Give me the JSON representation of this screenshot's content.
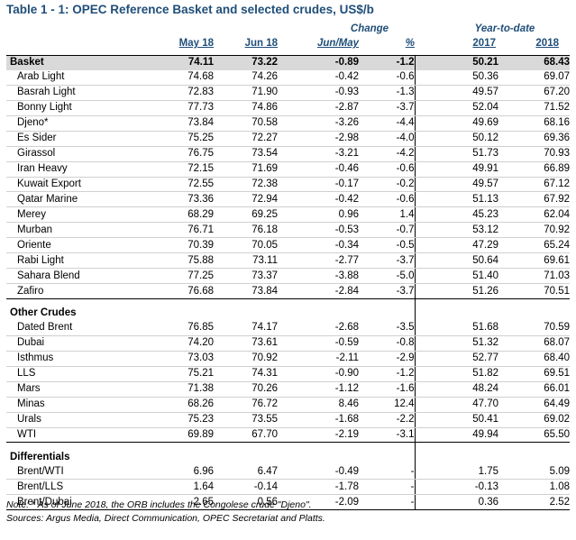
{
  "title": "Table 1 - 1: OPEC Reference Basket and selected crudes, US$/b",
  "headers": {
    "change_group": "Change",
    "ytd_group": "Year-to-date",
    "may18": "May 18",
    "jun18": "Jun 18",
    "jun_may": "Jun/May",
    "pct": "%",
    "y2017": "2017",
    "y2018": "2018"
  },
  "basket": {
    "label": "Basket",
    "may18": "74.11",
    "jun18": "73.22",
    "chg": "-0.89",
    "pct": "-1.2",
    "y2017": "50.21",
    "y2018": "68.43"
  },
  "basket_crudes": [
    {
      "label": "Arab Light",
      "may18": "74.68",
      "jun18": "74.26",
      "chg": "-0.42",
      "pct": "-0.6",
      "y2017": "50.36",
      "y2018": "69.07"
    },
    {
      "label": "Basrah Light",
      "may18": "72.83",
      "jun18": "71.90",
      "chg": "-0.93",
      "pct": "-1.3",
      "y2017": "49.57",
      "y2018": "67.20"
    },
    {
      "label": "Bonny Light",
      "may18": "77.73",
      "jun18": "74.86",
      "chg": "-2.87",
      "pct": "-3.7",
      "y2017": "52.04",
      "y2018": "71.52"
    },
    {
      "label": "Djeno*",
      "may18": "73.84",
      "jun18": "70.58",
      "chg": "-3.26",
      "pct": "-4.4",
      "y2017": "49.69",
      "y2018": "68.16"
    },
    {
      "label": "Es Sider",
      "may18": "75.25",
      "jun18": "72.27",
      "chg": "-2.98",
      "pct": "-4.0",
      "y2017": "50.12",
      "y2018": "69.36"
    },
    {
      "label": "Girassol",
      "may18": "76.75",
      "jun18": "73.54",
      "chg": "-3.21",
      "pct": "-4.2",
      "y2017": "51.73",
      "y2018": "70.93"
    },
    {
      "label": "Iran Heavy",
      "may18": "72.15",
      "jun18": "71.69",
      "chg": "-0.46",
      "pct": "-0.6",
      "y2017": "49.91",
      "y2018": "66.89"
    },
    {
      "label": "Kuwait Export",
      "may18": "72.55",
      "jun18": "72.38",
      "chg": "-0.17",
      "pct": "-0.2",
      "y2017": "49.57",
      "y2018": "67.12"
    },
    {
      "label": "Qatar Marine",
      "may18": "73.36",
      "jun18": "72.94",
      "chg": "-0.42",
      "pct": "-0.6",
      "y2017": "51.13",
      "y2018": "67.92"
    },
    {
      "label": "Merey",
      "may18": "68.29",
      "jun18": "69.25",
      "chg": "0.96",
      "pct": "1.4",
      "y2017": "45.23",
      "y2018": "62.04"
    },
    {
      "label": "Murban",
      "may18": "76.71",
      "jun18": "76.18",
      "chg": "-0.53",
      "pct": "-0.7",
      "y2017": "53.12",
      "y2018": "70.92"
    },
    {
      "label": "Oriente",
      "may18": "70.39",
      "jun18": "70.05",
      "chg": "-0.34",
      "pct": "-0.5",
      "y2017": "47.29",
      "y2018": "65.24"
    },
    {
      "label": "Rabi Light",
      "may18": "75.88",
      "jun18": "73.11",
      "chg": "-2.77",
      "pct": "-3.7",
      "y2017": "50.64",
      "y2018": "69.61"
    },
    {
      "label": "Sahara Blend",
      "may18": "77.25",
      "jun18": "73.37",
      "chg": "-3.88",
      "pct": "-5.0",
      "y2017": "51.40",
      "y2018": "71.03"
    },
    {
      "label": "Zafiro",
      "may18": "76.68",
      "jun18": "73.84",
      "chg": "-2.84",
      "pct": "-3.7",
      "y2017": "51.26",
      "y2018": "70.51"
    }
  ],
  "other_label": "Other Crudes",
  "other_crudes": [
    {
      "label": "Dated Brent",
      "may18": "76.85",
      "jun18": "74.17",
      "chg": "-2.68",
      "pct": "-3.5",
      "y2017": "51.68",
      "y2018": "70.59"
    },
    {
      "label": "Dubai",
      "may18": "74.20",
      "jun18": "73.61",
      "chg": "-0.59",
      "pct": "-0.8",
      "y2017": "51.32",
      "y2018": "68.07"
    },
    {
      "label": "Isthmus",
      "may18": "73.03",
      "jun18": "70.92",
      "chg": "-2.11",
      "pct": "-2.9",
      "y2017": "52.77",
      "y2018": "68.40"
    },
    {
      "label": "LLS",
      "may18": "75.21",
      "jun18": "74.31",
      "chg": "-0.90",
      "pct": "-1.2",
      "y2017": "51.82",
      "y2018": "69.51"
    },
    {
      "label": "Mars",
      "may18": "71.38",
      "jun18": "70.26",
      "chg": "-1.12",
      "pct": "-1.6",
      "y2017": "48.24",
      "y2018": "66.01"
    },
    {
      "label": "Minas",
      "may18": "68.26",
      "jun18": "76.72",
      "chg": "8.46",
      "pct": "12.4",
      "y2017": "47.70",
      "y2018": "64.49"
    },
    {
      "label": "Urals",
      "may18": "75.23",
      "jun18": "73.55",
      "chg": "-1.68",
      "pct": "-2.2",
      "y2017": "50.41",
      "y2018": "69.02"
    },
    {
      "label": "WTI",
      "may18": "69.89",
      "jun18": "67.70",
      "chg": "-2.19",
      "pct": "-3.1",
      "y2017": "49.94",
      "y2018": "65.50"
    }
  ],
  "diff_label": "Differentials",
  "differentials": [
    {
      "label": "Brent/WTI",
      "may18": "6.96",
      "jun18": "6.47",
      "chg": "-0.49",
      "pct": "-",
      "y2017": "1.75",
      "y2018": "5.09"
    },
    {
      "label": "Brent/LLS",
      "may18": "1.64",
      "jun18": "-0.14",
      "chg": "-1.78",
      "pct": "-",
      "y2017": "-0.13",
      "y2018": "1.08"
    },
    {
      "label": "Brent/Dubai",
      "may18": "2.65",
      "jun18": "0.56",
      "chg": "-2.09",
      "pct": "-",
      "y2017": "0.36",
      "y2018": "2.52"
    }
  ],
  "notes": {
    "note": "Note: * As of June 2018, the ORB includes the Congolese crude \"Djeno\".",
    "sources": "Sources:  Argus Media, Direct Communication, OPEC Secretariat and Platts."
  }
}
